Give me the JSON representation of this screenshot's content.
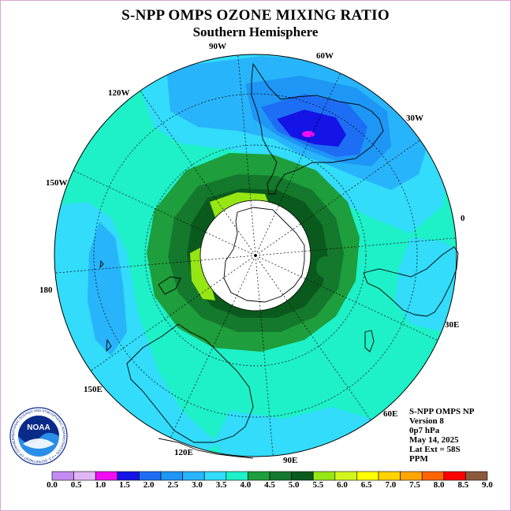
{
  "title": "S-NPP OMPS OZONE MIXING RATIO",
  "subtitle": "Southern Hemisphere",
  "longitude_labels": {
    "deg0": "0",
    "deg30e": "30E",
    "deg60e": "60E",
    "deg90e": "90E",
    "deg120e": "120E",
    "deg150e": "150E",
    "deg180": "180",
    "deg150w": "150W",
    "deg120w": "120W",
    "deg90w": "90W",
    "deg60w": "60W",
    "deg30w": "30W"
  },
  "info": {
    "instrument": "S-NPP OMPS NP",
    "version": "Version 8",
    "pressure": "0p7 hPa",
    "date": "May 14, 2025",
    "lat_ext": "Lat Ext = 58S",
    "units": "PPM"
  },
  "logo": {
    "text": "NOAA",
    "ring_text": "NATIONAL OCEANIC AND ATMOSPHERIC ADMINISTRATION • U.S. DEPARTMENT OF COMMERCE"
  },
  "colorbar": {
    "labels": [
      "0.0",
      "0.5",
      "1.0",
      "1.5",
      "2.0",
      "2.5",
      "3.0",
      "3.5",
      "4.0",
      "4.5",
      "5.0",
      "5.5",
      "6.0",
      "6.5",
      "7.0",
      "7.5",
      "8.0",
      "8.5",
      "9.0"
    ],
    "colors": [
      "#c38af2",
      "#e0b5f5",
      "#f20cf2",
      "#1414e6",
      "#1e6ef5",
      "#1e96f5",
      "#28b4fa",
      "#32dcfa",
      "#1ef0c8",
      "#1e9e3c",
      "#14782d",
      "#0a5a1e",
      "#96e614",
      "#d2f51e",
      "#ffff00",
      "#ffd200",
      "#ffa500",
      "#ff6400",
      "#ff0000",
      "#8b5a3c"
    ]
  },
  "map_colors": {
    "background": "#1ef0c8",
    "level_3_5": "#32dcfa",
    "level_3_0": "#28b4fa",
    "level_2_5": "#1e96f5",
    "level_2_0": "#1e6ef5",
    "level_1_5": "#1414e6",
    "level_1_0": "#f20cf2",
    "level_4_0": "#1e9e3c",
    "level_4_5": "#14782d",
    "level_5_0": "#0a5a1e",
    "level_5_5": "#96e614",
    "no_data": "#ffffff"
  }
}
